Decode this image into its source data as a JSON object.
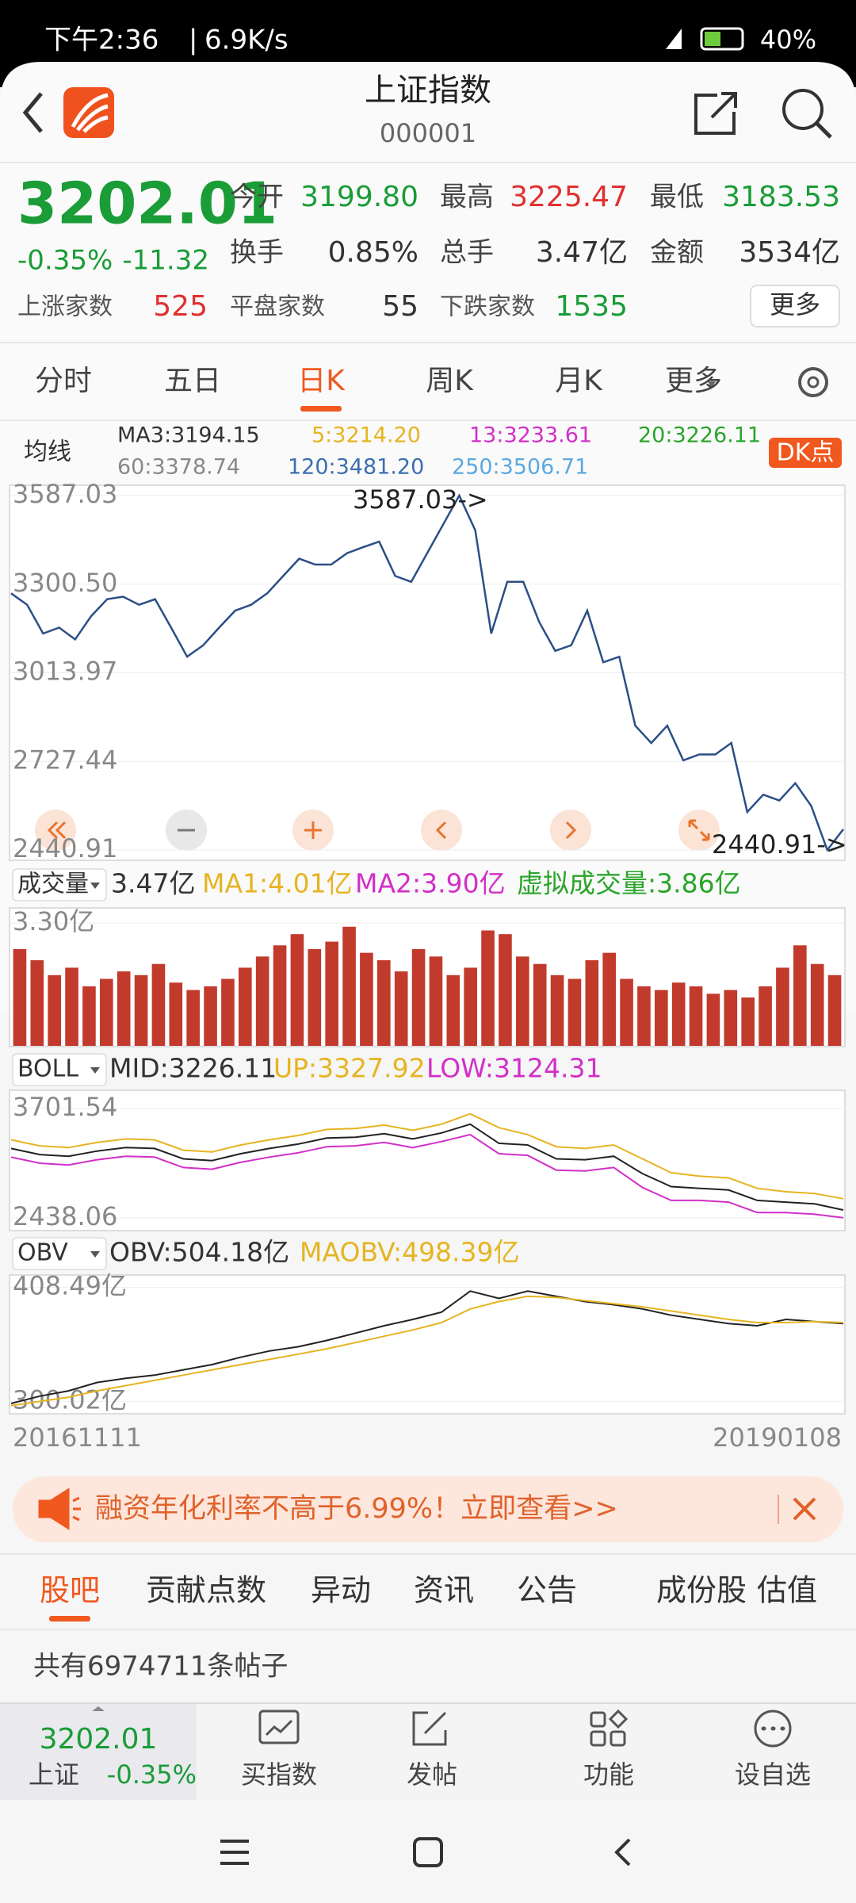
{
  "status_bar": {
    "time": "下午2:36",
    "speed": "6.9K/s",
    "battery": "40%"
  },
  "header": {
    "title": "上证指数",
    "code": "000001"
  },
  "quote": {
    "price": "3202.01",
    "change_pct": "-0.35%",
    "change": "-11.32",
    "stats": [
      {
        "label": "今开",
        "value": "3199.80",
        "color": "#1a9c37"
      },
      {
        "label": "最高",
        "value": "3225.47",
        "color": "#e03030"
      },
      {
        "label": "最低",
        "value": "3183.53",
        "color": "#1a9c37"
      },
      {
        "label": "换手",
        "value": "0.85%",
        "color": "#333333"
      },
      {
        "label": "总手",
        "value": "3.47亿",
        "color": "#333333"
      },
      {
        "label": "金额",
        "value": "3534亿",
        "color": "#333333"
      }
    ],
    "breadth": [
      {
        "label": "上涨家数",
        "value": "525",
        "color": "#e03030"
      },
      {
        "label": "平盘家数",
        "value": "55",
        "color": "#333333"
      },
      {
        "label": "下跌家数",
        "value": "1535",
        "color": "#1a9c37"
      }
    ],
    "more": "更多"
  },
  "period_tabs": [
    "分时",
    "五日",
    "日K",
    "周K",
    "月K",
    "更多"
  ],
  "active_tab": 2,
  "ma_legend": {
    "label": "均线",
    "items": [
      {
        "text": "MA3:3194.15",
        "color": "#333333"
      },
      {
        "text": "5:3214.20",
        "color": "#e6b422"
      },
      {
        "text": "13:3233.61",
        "color": "#d22fc8"
      },
      {
        "text": "20:3226.11",
        "color": "#2aa52a"
      },
      {
        "text": "60:3378.74",
        "color": "#888888"
      },
      {
        "text": "120:3481.20",
        "color": "#3b6fb0"
      },
      {
        "text": "250:3506.71",
        "color": "#5aa9e0"
      }
    ],
    "dk_button": "DK点"
  },
  "price_chart": {
    "type": "line",
    "color": "#2b4f85",
    "values": [
      3271,
      3234,
      3141,
      3160,
      3122,
      3197,
      3252,
      3260,
      3234,
      3252,
      3160,
      3066,
      3103,
      3160,
      3215,
      3234,
      3271,
      3327,
      3383,
      3364,
      3364,
      3401,
      3420,
      3438,
      3327,
      3308,
      3401,
      3494,
      3587.03,
      3475,
      3141,
      3308,
      3308,
      3178,
      3085,
      3103,
      3215,
      3048,
      3066,
      2843,
      2787,
      2843,
      2731,
      2750,
      2750,
      2787,
      2564,
      2620,
      2601,
      2657,
      2583,
      2440.91,
      2508
    ],
    "ylim": [
      2440.91,
      3587.03
    ],
    "yticks": [
      2440.91,
      2727.44,
      3013.97,
      {
        "value": 3300.5,
        "label": "3300.50"
      },
      3587.03
    ],
    "annotations": [
      "3587.03->",
      "2440.91->"
    ]
  },
  "volume_chart": {
    "type": "bar",
    "selector": "成交量",
    "legend": [
      {
        "text": "3.47亿",
        "color": "#333333"
      },
      {
        "text": "MA1:4.01亿",
        "color": "#e6b422"
      },
      {
        "text": "MA2:3.90亿",
        "color": "#d22fc8"
      },
      {
        "text": "虚拟成交量:3.86亿",
        "color": "#2aa52a"
      }
    ],
    "color": "#c23a2c",
    "values": [
      2.6,
      2.3,
      1.9,
      2.1,
      1.6,
      1.8,
      2.0,
      1.9,
      2.2,
      1.7,
      1.5,
      1.6,
      1.8,
      2.1,
      2.4,
      2.7,
      3.0,
      2.6,
      2.8,
      3.2,
      2.5,
      2.3,
      2.0,
      2.6,
      2.4,
      1.9,
      2.1,
      3.1,
      3.0,
      2.4,
      2.2,
      1.9,
      1.8,
      2.3,
      2.5,
      1.8,
      1.6,
      1.5,
      1.7,
      1.6,
      1.4,
      1.5,
      1.3,
      1.6,
      2.1,
      2.7,
      2.2,
      1.9
    ],
    "ylim": [
      0,
      3.6
    ],
    "yticks": [
      {
        "value": 3.3,
        "label": "3.30亿"
      }
    ]
  },
  "boll_chart": {
    "type": "line",
    "selector": "BOLL",
    "legend": [
      {
        "text": "MID:3226.11",
        "color": "#333333"
      },
      {
        "text": "UP:3327.92",
        "color": "#e6b422"
      },
      {
        "text": "LOW:3124.31",
        "color": "#d22fc8"
      }
    ],
    "series": [
      {
        "color": "#222222",
        "values": [
          3240,
          3170,
          3150,
          3210,
          3250,
          3240,
          3120,
          3100,
          3180,
          3240,
          3290,
          3360,
          3370,
          3410,
          3350,
          3420,
          3520,
          3300,
          3280,
          3120,
          3110,
          3150,
          2950,
          2800,
          2780,
          2760,
          2640,
          2620,
          2600,
          2530
        ]
      },
      {
        "color": "#e6b422",
        "values": [
          3340,
          3270,
          3250,
          3310,
          3350,
          3340,
          3220,
          3200,
          3280,
          3340,
          3390,
          3460,
          3470,
          3510,
          3450,
          3520,
          3640,
          3480,
          3400,
          3260,
          3240,
          3280,
          3120,
          2960,
          2920,
          2900,
          2780,
          2740,
          2720,
          2660
        ]
      },
      {
        "color": "#d22fc8",
        "values": [
          3140,
          3070,
          3050,
          3110,
          3150,
          3140,
          3020,
          3000,
          3080,
          3140,
          3190,
          3260,
          3270,
          3310,
          3250,
          3320,
          3400,
          3180,
          3160,
          2990,
          2980,
          3020,
          2790,
          2640,
          2640,
          2620,
          2500,
          2500,
          2480,
          2440
        ]
      }
    ],
    "ylim": [
      2438.06,
      3701.54
    ],
    "yticks": [
      2438.06,
      3701.54
    ]
  },
  "obv_chart": {
    "type": "line",
    "selector": "OBV",
    "legend": [
      {
        "text": "OBV:504.18亿",
        "color": "#333333"
      },
      {
        "text": "MAOBV:498.39亿",
        "color": "#e6b422"
      }
    ],
    "series": [
      {
        "color": "#222222",
        "values": [
          298,
          305,
          310,
          318,
          322,
          325,
          330,
          335,
          342,
          348,
          352,
          358,
          365,
          372,
          378,
          385,
          405,
          398,
          405,
          400,
          395,
          392,
          388,
          382,
          378,
          374,
          372,
          378,
          376,
          374
        ]
      },
      {
        "color": "#e6b422",
        "values": [
          296,
          300,
          304,
          310,
          315,
          320,
          325,
          330,
          335,
          340,
          345,
          350,
          356,
          362,
          368,
          375,
          388,
          395,
          400,
          399,
          396,
          393,
          390,
          386,
          382,
          378,
          375,
          375,
          376,
          375
        ]
      }
    ],
    "ylim": [
      292,
      415
    ],
    "yticks": [
      {
        "value": 300.02,
        "label": "300.02亿"
      },
      {
        "value": 408.49,
        "label": "408.49亿"
      }
    ],
    "start_date": "20161111",
    "end_date": "20190108"
  },
  "banner": {
    "text": "融资年化利率不高于6.99%！立即查看>>"
  },
  "sub_tabs": [
    "股吧",
    "贡献点数",
    "异动",
    "资讯",
    "公告",
    "成份股",
    "估值"
  ],
  "post_count": "共有6974711条帖子",
  "bottom_bar": {
    "price": "3202.01",
    "name": "上证",
    "change": "-0.35%",
    "actions": [
      "买指数",
      "发帖",
      "功能",
      "设自选"
    ]
  }
}
